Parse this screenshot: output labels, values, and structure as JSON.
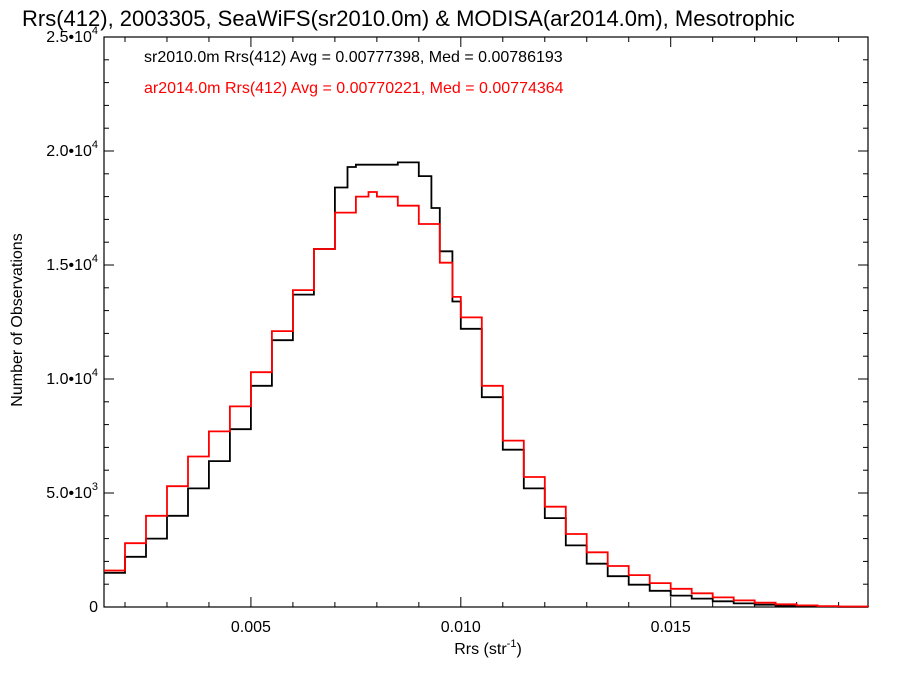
{
  "chart_data": {
    "type": "line",
    "title": "Rrs(412), 2003305, SeaWiFS(sr2010.0m) & MODISA(ar2014.0m), Mesotrophic",
    "xlabel": "Rrs (str",
    "xlabel_exp": "-1",
    "xlabel_suffix": ")",
    "ylabel": "Number of Observations",
    "xlim": [
      0.0015,
      0.0197
    ],
    "ylim": [
      0,
      25000
    ],
    "x_ticks": [
      {
        "value": 0.005,
        "label": "0.005"
      },
      {
        "value": 0.01,
        "label": "0.010"
      },
      {
        "value": 0.015,
        "label": "0.015"
      }
    ],
    "y_ticks": [
      {
        "value": 0,
        "mant": "0",
        "exp": ""
      },
      {
        "value": 5000,
        "mant": "5.0•10",
        "exp": "3"
      },
      {
        "value": 10000,
        "mant": "1.0•10",
        "exp": "4"
      },
      {
        "value": 15000,
        "mant": "1.5•10",
        "exp": "4"
      },
      {
        "value": 20000,
        "mant": "2.0•10",
        "exp": "4"
      },
      {
        "value": 25000,
        "mant": "2.5•10",
        "exp": "4"
      }
    ],
    "legend": [
      {
        "text": "sr2010.0m Rrs(412) Avg = 0.00777398, Med = 0.00786193",
        "color": "#000000"
      },
      {
        "text": "ar2014.0m Rrs(412) Avg = 0.00770221, Med = 0.00774364",
        "color": "#ff0000"
      }
    ],
    "legend_placement": "top-left",
    "series": [
      {
        "color": "#000000",
        "points": [
          [
            0.0015,
            1500
          ],
          [
            0.002,
            2200
          ],
          [
            0.0025,
            3000
          ],
          [
            0.003,
            4000
          ],
          [
            0.0035,
            5200
          ],
          [
            0.004,
            6400
          ],
          [
            0.0045,
            7800
          ],
          [
            0.005,
            9700
          ],
          [
            0.0055,
            11700
          ],
          [
            0.006,
            13700
          ],
          [
            0.0065,
            15700
          ],
          [
            0.007,
            18400
          ],
          [
            0.0073,
            19300
          ],
          [
            0.0075,
            19400
          ],
          [
            0.008,
            19400
          ],
          [
            0.0085,
            19500
          ],
          [
            0.0088,
            19500
          ],
          [
            0.009,
            18900
          ],
          [
            0.0093,
            17500
          ],
          [
            0.0095,
            15600
          ],
          [
            0.0098,
            13400
          ],
          [
            0.01,
            12200
          ],
          [
            0.0105,
            9200
          ],
          [
            0.011,
            6900
          ],
          [
            0.0115,
            5200
          ],
          [
            0.012,
            3900
          ],
          [
            0.0125,
            2700
          ],
          [
            0.013,
            1900
          ],
          [
            0.0135,
            1350
          ],
          [
            0.014,
            980
          ],
          [
            0.0145,
            710
          ],
          [
            0.015,
            500
          ],
          [
            0.0155,
            370
          ],
          [
            0.016,
            250
          ],
          [
            0.0165,
            160
          ],
          [
            0.017,
            100
          ],
          [
            0.0175,
            60
          ],
          [
            0.018,
            40
          ],
          [
            0.0185,
            20
          ],
          [
            0.019,
            10
          ],
          [
            0.0197,
            5
          ]
        ]
      },
      {
        "color": "#ff0000",
        "points": [
          [
            0.0015,
            1600
          ],
          [
            0.002,
            2800
          ],
          [
            0.0025,
            4000
          ],
          [
            0.003,
            5300
          ],
          [
            0.0035,
            6600
          ],
          [
            0.004,
            7700
          ],
          [
            0.0045,
            8800
          ],
          [
            0.005,
            10300
          ],
          [
            0.0055,
            12100
          ],
          [
            0.006,
            13900
          ],
          [
            0.0065,
            15700
          ],
          [
            0.007,
            17300
          ],
          [
            0.0075,
            18000
          ],
          [
            0.0078,
            18200
          ],
          [
            0.008,
            18000
          ],
          [
            0.0085,
            17600
          ],
          [
            0.009,
            16800
          ],
          [
            0.0095,
            15100
          ],
          [
            0.0098,
            13600
          ],
          [
            0.01,
            12700
          ],
          [
            0.0105,
            9700
          ],
          [
            0.011,
            7300
          ],
          [
            0.0115,
            5700
          ],
          [
            0.012,
            4400
          ],
          [
            0.0125,
            3200
          ],
          [
            0.013,
            2400
          ],
          [
            0.0135,
            1800
          ],
          [
            0.014,
            1400
          ],
          [
            0.0145,
            1050
          ],
          [
            0.015,
            800
          ],
          [
            0.0155,
            600
          ],
          [
            0.016,
            420
          ],
          [
            0.0165,
            290
          ],
          [
            0.017,
            190
          ],
          [
            0.0175,
            120
          ],
          [
            0.018,
            70
          ],
          [
            0.0185,
            40
          ],
          [
            0.019,
            20
          ],
          [
            0.0197,
            8
          ]
        ]
      }
    ]
  }
}
